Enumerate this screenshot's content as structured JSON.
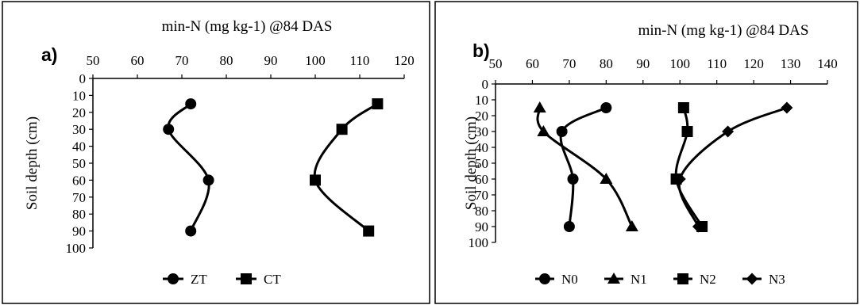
{
  "chart_data": [
    {
      "type": "line",
      "panel_label": "a)",
      "title": "min-N (mg kg-1) @84 DAS",
      "xlabel": "",
      "ylabel": "Soil depth (cm)",
      "x_axis_position": "top",
      "y_inverted": true,
      "xlim": [
        50,
        120
      ],
      "ylim": [
        0,
        100
      ],
      "x_ticks": [
        50,
        60,
        70,
        80,
        90,
        100,
        110,
        120
      ],
      "x_tick_labels": [
        "50",
        "60",
        "70",
        "80",
        "90",
        "100",
        "110",
        "120"
      ],
      "y_ticks": [
        0,
        10,
        20,
        30,
        40,
        50,
        60,
        70,
        80,
        90,
        100
      ],
      "y_tick_labels": [
        "0",
        "10",
        "20",
        "30",
        "40",
        "50",
        "60",
        "70",
        "80",
        "90",
        "100"
      ],
      "grid": false,
      "legend_position": "bottom",
      "series": [
        {
          "name": "ZT",
          "marker": "circle",
          "points": [
            [
              72,
              15
            ],
            [
              67,
              30
            ],
            [
              76,
              60
            ],
            [
              72,
              90
            ]
          ]
        },
        {
          "name": "CT",
          "marker": "square",
          "points": [
            [
              114,
              15
            ],
            [
              106,
              30
            ],
            [
              100,
              60
            ],
            [
              112,
              90
            ]
          ]
        }
      ]
    },
    {
      "type": "line",
      "panel_label": "b)",
      "title": "min-N (mg kg-1) @84 DAS",
      "xlabel": "",
      "ylabel": "Soil depth (cm)",
      "x_axis_position": "top",
      "y_inverted": true,
      "xlim": [
        50,
        140
      ],
      "ylim": [
        0,
        100
      ],
      "x_ticks": [
        50,
        60,
        70,
        80,
        90,
        100,
        110,
        120,
        130,
        140
      ],
      "x_tick_labels": [
        "50",
        "60",
        "70",
        "80",
        "90",
        "100",
        "110",
        "120",
        "130",
        "140"
      ],
      "y_ticks": [
        0,
        10,
        20,
        30,
        40,
        50,
        60,
        70,
        80,
        90,
        100
      ],
      "y_tick_labels": [
        "0",
        "10",
        "20",
        "30",
        "40",
        "50",
        "60",
        "70",
        "80",
        "90",
        "100"
      ],
      "grid": false,
      "legend_position": "bottom",
      "series": [
        {
          "name": "N0",
          "marker": "circle",
          "points": [
            [
              80,
              15
            ],
            [
              68,
              30
            ],
            [
              71,
              60
            ],
            [
              70,
              90
            ]
          ]
        },
        {
          "name": "N1",
          "marker": "triangle",
          "points": [
            [
              62,
              15
            ],
            [
              63,
              30
            ],
            [
              80,
              60
            ],
            [
              87,
              90
            ]
          ]
        },
        {
          "name": "N2",
          "marker": "square",
          "points": [
            [
              101,
              15
            ],
            [
              102,
              30
            ],
            [
              99,
              60
            ],
            [
              106,
              90
            ]
          ]
        },
        {
          "name": "N3",
          "marker": "diamond",
          "points": [
            [
              129,
              15
            ],
            [
              113,
              30
            ],
            [
              100,
              60
            ],
            [
              105,
              90
            ]
          ]
        }
      ]
    }
  ]
}
